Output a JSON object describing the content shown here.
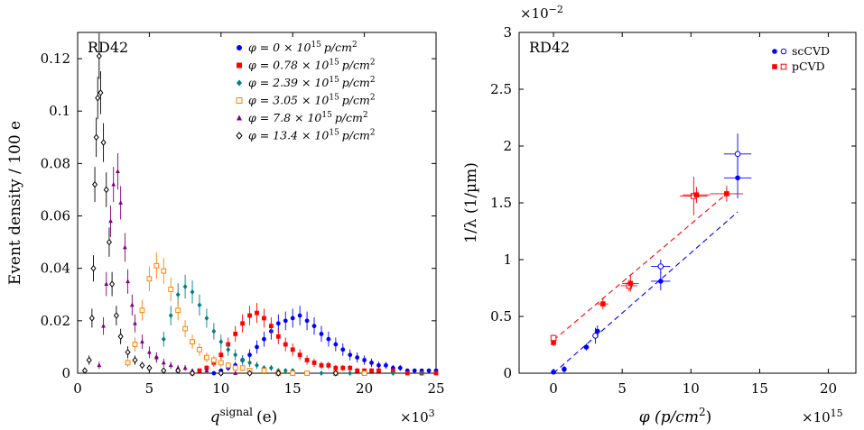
{
  "chart_data": [
    {
      "type": "scatter",
      "title": "RD42",
      "xlabel": "q^signal (e)",
      "xlabel_parts": {
        "main": "q",
        "sup": "signal",
        "unit": "(e)"
      },
      "x_multiplier": "×10^3",
      "x_multiplier_parts": {
        "base": "×10",
        "exp": "3"
      },
      "ylabel": "Event density / 100 e",
      "xlim": [
        0,
        25
      ],
      "ylim": [
        0,
        0.13
      ],
      "x_ticks": [
        0,
        5,
        10,
        15,
        20,
        25
      ],
      "x_tick_labels": [
        "0",
        "5",
        "10",
        "15",
        "20",
        "25"
      ],
      "y_ticks": [
        0,
        0.02,
        0.04,
        0.06,
        0.08,
        0.1,
        0.12
      ],
      "y_tick_labels": [
        "0",
        "0.02",
        "0.04",
        "0.06",
        "0.08",
        "0.1",
        "0.12"
      ],
      "grid": false,
      "legend_position": "top-right",
      "series": [
        {
          "name": "φ = 0 × 10^15 p/cm^2",
          "label": {
            "phi": "φ = 0 × 10",
            "exp": "15",
            "unit": "p/cm",
            "uexp": "2"
          },
          "color": "#0000ff",
          "marker": "circle-filled",
          "peak": 15.0,
          "sigma_left": 1.45,
          "sigma_right": 2.2,
          "amplitude": 0.021,
          "x": [
            9.5,
            10.0,
            10.5,
            11.0,
            11.5,
            12.0,
            12.5,
            13.0,
            13.5,
            14.0,
            14.5,
            15.0,
            15.5,
            16.0,
            16.5,
            17.0,
            17.5,
            18.0,
            18.5,
            19.0,
            19.5,
            20.0,
            20.5,
            21.0,
            21.5,
            22.0,
            22.5,
            23.0,
            23.5,
            24.0,
            24.5,
            25.0
          ],
          "y": [
            0.0,
            0.001,
            0.002,
            0.003,
            0.005,
            0.007,
            0.01,
            0.013,
            0.016,
            0.019,
            0.02,
            0.021,
            0.022,
            0.02,
            0.018,
            0.015,
            0.013,
            0.011,
            0.009,
            0.007,
            0.006,
            0.005,
            0.004,
            0.003,
            0.003,
            0.002,
            0.002,
            0.001,
            0.001,
            0.001,
            0.001,
            0.001
          ]
        },
        {
          "name": "φ = 0.78 × 10^15 p/cm^2",
          "label": {
            "phi": "φ = 0.78 × 10",
            "exp": "15",
            "unit": "p/cm",
            "uexp": "2"
          },
          "color": "#ff0000",
          "marker": "square-filled",
          "x": [
            8.0,
            8.5,
            9.0,
            9.5,
            10.0,
            10.5,
            11.0,
            11.5,
            12.0,
            12.5,
            13.0,
            13.5,
            14.0,
            14.5,
            15.0,
            15.5,
            16.0,
            16.5,
            17.0,
            17.5,
            18.0,
            18.5,
            19.0,
            19.5,
            20.0,
            20.5,
            21.0,
            22.0,
            23.0,
            24.0,
            25.0
          ],
          "y": [
            0.0,
            0.001,
            0.002,
            0.004,
            0.007,
            0.011,
            0.015,
            0.019,
            0.022,
            0.023,
            0.021,
            0.018,
            0.014,
            0.011,
            0.009,
            0.007,
            0.005,
            0.004,
            0.003,
            0.003,
            0.002,
            0.002,
            0.002,
            0.001,
            0.001,
            0.001,
            0.001,
            0.001,
            0.0,
            0.0,
            0.0
          ]
        },
        {
          "name": "φ = 2.39 × 10^15 p/cm^2",
          "label": {
            "phi": "φ = 2.39 × 10",
            "exp": "15",
            "unit": "p/cm",
            "uexp": "2"
          },
          "color": "#008080",
          "marker": "diamond-filled",
          "x": [
            5.0,
            5.5,
            6.0,
            6.5,
            7.0,
            7.5,
            8.0,
            8.5,
            9.0,
            9.5,
            10.0,
            10.5,
            11.0,
            11.5,
            12.0,
            12.5,
            13.0,
            13.5,
            14.0,
            14.5,
            15.0,
            16.0,
            17.0,
            18.0,
            19.0,
            20.0,
            22.0,
            24.0
          ],
          "y": [
            0.002,
            0.006,
            0.013,
            0.022,
            0.03,
            0.033,
            0.031,
            0.026,
            0.021,
            0.016,
            0.012,
            0.009,
            0.007,
            0.005,
            0.004,
            0.003,
            0.002,
            0.002,
            0.001,
            0.001,
            0.001,
            0.0,
            0.0,
            0.0,
            0.0,
            0.0,
            0.0,
            0.0
          ]
        },
        {
          "name": "φ = 3.05 × 10^15 p/cm^2",
          "label": {
            "phi": "φ = 3.05 × 10",
            "exp": "15",
            "unit": "p/cm",
            "uexp": "2"
          },
          "color": "#ff8000",
          "marker": "square-open",
          "x": [
            3.5,
            4.0,
            4.5,
            5.0,
            5.5,
            6.0,
            6.5,
            7.0,
            7.5,
            8.0,
            8.5,
            9.0,
            9.5,
            10.0,
            10.5,
            11.0,
            11.5,
            12.0,
            13.0,
            14.0,
            15.0,
            16.0,
            18.0,
            20.0
          ],
          "y": [
            0.004,
            0.011,
            0.024,
            0.036,
            0.041,
            0.039,
            0.032,
            0.024,
            0.017,
            0.012,
            0.009,
            0.006,
            0.005,
            0.004,
            0.003,
            0.002,
            0.002,
            0.001,
            0.001,
            0.0,
            0.0,
            0.0,
            0.0,
            0.0
          ]
        },
        {
          "name": "φ = 7.8 × 10^15 p/cm^2",
          "label": {
            "phi": "φ = 7.8 × 10",
            "exp": "15",
            "unit": "p/cm",
            "uexp": "2"
          },
          "color": "#800080",
          "marker": "triangle-filled",
          "x": [
            1.5,
            1.8,
            2.0,
            2.3,
            2.5,
            2.8,
            3.0,
            3.3,
            3.5,
            3.8,
            4.0,
            4.5,
            5.0,
            5.5,
            6.0,
            6.5,
            7.0,
            7.5,
            8.0,
            9.0,
            10.0,
            11.0,
            12.0
          ],
          "y": [
            0.003,
            0.018,
            0.034,
            0.058,
            0.072,
            0.077,
            0.065,
            0.048,
            0.035,
            0.026,
            0.019,
            0.012,
            0.008,
            0.006,
            0.004,
            0.003,
            0.002,
            0.002,
            0.001,
            0.001,
            0.0,
            0.0,
            0.0
          ]
        },
        {
          "name": "φ = 13.4 × 10^15 p/cm^2",
          "label": {
            "phi": "φ = 13.4 × 10",
            "exp": "15",
            "unit": "p/cm",
            "uexp": "2"
          },
          "color": "#000000",
          "marker": "diamond-open",
          "x": [
            0.5,
            0.8,
            1.0,
            1.1,
            1.2,
            1.3,
            1.4,
            1.5,
            1.6,
            1.8,
            2.0,
            2.2,
            2.4,
            2.7,
            3.0,
            3.5,
            4.0,
            4.5,
            5.0,
            6.0,
            7.0,
            8.0,
            10.0,
            12.0,
            14.0,
            18.0
          ],
          "y": [
            0.001,
            0.005,
            0.021,
            0.04,
            0.072,
            0.09,
            0.105,
            0.121,
            0.107,
            0.088,
            0.07,
            0.05,
            0.034,
            0.022,
            0.014,
            0.008,
            0.005,
            0.003,
            0.002,
            0.001,
            0.001,
            0.0,
            0.0,
            0.0,
            0.0,
            0.0
          ]
        }
      ]
    },
    {
      "type": "scatter",
      "title": "RD42",
      "xlabel": "φ (p/cm^2)",
      "xlabel_parts": {
        "main": "φ (p/cm",
        "sup": "2",
        "tail": ")"
      },
      "x_multiplier": "×10^15",
      "x_multiplier_parts": {
        "base": "×10",
        "exp": "15"
      },
      "ylabel": "1/λ (1/µm)",
      "y_multiplier": "×10^−2",
      "y_multiplier_parts": {
        "base": "×10",
        "exp": "−2"
      },
      "xlim": [
        -2.5,
        22
      ],
      "ylim": [
        0,
        3
      ],
      "x_ticks": [
        0,
        5,
        10,
        15,
        20
      ],
      "x_tick_labels": [
        "0",
        "5",
        "10",
        "15",
        "20"
      ],
      "y_ticks": [
        0,
        0.5,
        1,
        1.5,
        2,
        2.5,
        3
      ],
      "y_tick_labels": [
        "0",
        "0.5",
        "1",
        "1.5",
        "2",
        "2.5",
        "3"
      ],
      "grid": false,
      "legend_position": "top-right",
      "legend": [
        {
          "name": "scCVD",
          "color": "#0000ff"
        },
        {
          "name": "pCVD",
          "color": "#ff0000"
        }
      ],
      "series": [
        {
          "name": "scCVD",
          "color": "#0000ff",
          "points": [
            {
              "x": 0,
              "y": 0.01,
              "xerr": 0,
              "yerr": 0.02,
              "open": false
            },
            {
              "x": 0.78,
              "y": 0.035,
              "xerr": 0,
              "yerr": 0.03,
              "open": false
            },
            {
              "x": 2.39,
              "y": 0.23,
              "xerr": 0.2,
              "yerr": 0.03,
              "open": false
            },
            {
              "x": 3.05,
              "y": 0.33,
              "xerr": 0.2,
              "yerr": 0.07,
              "open": true
            },
            {
              "x": 3.2,
              "y": 0.37,
              "xerr": 0.2,
              "yerr": 0.05,
              "open": false
            },
            {
              "x": 7.8,
              "y": 0.81,
              "xerr": 0.7,
              "yerr": 0.08,
              "open": false
            },
            {
              "x": 7.8,
              "y": 0.94,
              "xerr": 0.7,
              "yerr": 0.06,
              "open": true
            },
            {
              "x": 13.4,
              "y": 1.72,
              "xerr": 1.0,
              "yerr": 0.18,
              "open": false
            },
            {
              "x": 13.4,
              "y": 1.93,
              "xerr": 1.0,
              "yerr": 0.18,
              "open": true
            }
          ],
          "fit": {
            "x": [
              0,
              13.4
            ],
            "y": [
              0.0,
              1.42
            ]
          }
        },
        {
          "name": "pCVD",
          "color": "#ff0000",
          "points": [
            {
              "x": 0,
              "y": 0.27,
              "xerr": 0,
              "yerr": 0.03,
              "open": false
            },
            {
              "x": 0,
              "y": 0.31,
              "xerr": 0,
              "yerr": 0.03,
              "open": true
            },
            {
              "x": 3.6,
              "y": 0.61,
              "xerr": 0.4,
              "yerr": 0.05,
              "open": false
            },
            {
              "x": 5.5,
              "y": 0.77,
              "xerr": 0.6,
              "yerr": 0.05,
              "open": true
            },
            {
              "x": 5.6,
              "y": 0.79,
              "xerr": 0.6,
              "yerr": 0.07,
              "open": false
            },
            {
              "x": 10.2,
              "y": 1.56,
              "xerr": 1.0,
              "yerr": 0.17,
              "open": true
            },
            {
              "x": 10.4,
              "y": 1.57,
              "xerr": 1.0,
              "yerr": 0.07,
              "open": false
            },
            {
              "x": 12.6,
              "y": 1.58,
              "xerr": 1.2,
              "yerr": 0.07,
              "open": false
            }
          ],
          "fit": {
            "x": [
              0,
              12.6
            ],
            "y": [
              0.29,
              1.58
            ]
          }
        }
      ]
    }
  ]
}
